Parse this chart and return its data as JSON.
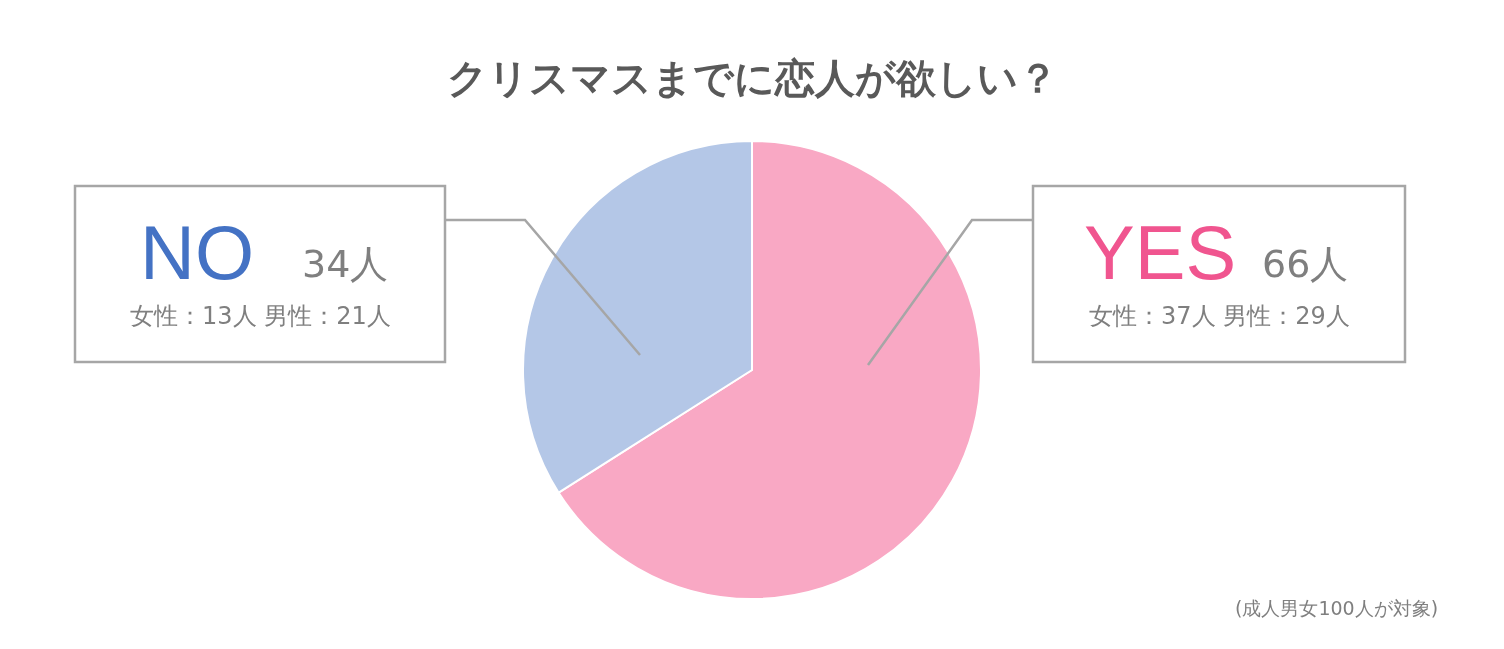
{
  "chart_data": {
    "type": "pie",
    "title": "クリスマスまでに恋人が欲しい？",
    "categories": [
      "YES",
      "NO"
    ],
    "values": [
      66,
      34
    ],
    "colors": [
      "#f9a8c4",
      "#b4c7e7"
    ],
    "value_labels": [
      "66人",
      "34人"
    ],
    "annotations": [
      "女性：37人 男性：29人",
      "女性：13人 男性：21人",
      "(成人男女100人が対象)"
    ]
  }
}
